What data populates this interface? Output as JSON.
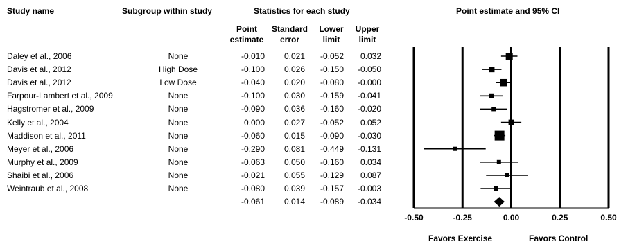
{
  "headers": {
    "study_name": "Study name",
    "subgroup": "Subgroup within study",
    "statistics": "Statistics for each study",
    "plot": "Point estimate and 95% CI",
    "point_estimate": "Point\nestimate",
    "standard_error": "Standard\nerror",
    "lower_limit": "Lower\nlimit",
    "upper_limit": "Upper\nlimit"
  },
  "favors": {
    "left": "Favors Exercise",
    "right": "Favors Control"
  },
  "chart_data": {
    "type": "forest",
    "xlim": [
      -0.5,
      0.5
    ],
    "ticks": [
      -0.5,
      -0.25,
      0.0,
      0.25,
      0.5
    ],
    "tick_labels": [
      "-0.50",
      "-0.25",
      "0.00",
      "0.25",
      "0.50"
    ],
    "studies": [
      {
        "name": "Daley et al., 2006",
        "subgroup": "None",
        "estimate": "-0.010",
        "se": "0.021",
        "lower": "-0.052",
        "upper": "0.032"
      },
      {
        "name": "Davis et al., 2012",
        "subgroup": "High Dose",
        "estimate": "-0.100",
        "se": "0.026",
        "lower": "-0.150",
        "upper": "-0.050"
      },
      {
        "name": "Davis et al., 2012",
        "subgroup": "Low Dose",
        "estimate": "-0.040",
        "se": "0.020",
        "lower": "-0.080",
        "upper": "-0.000"
      },
      {
        "name": "Farpour-Lambert et al., 2009",
        "subgroup": "None",
        "estimate": "-0.100",
        "se": "0.030",
        "lower": "-0.159",
        "upper": "-0.041"
      },
      {
        "name": "Hagstromer et al., 2009",
        "subgroup": "None",
        "estimate": "-0.090",
        "se": "0.036",
        "lower": "-0.160",
        "upper": "-0.020"
      },
      {
        "name": "Kelly et al., 2004",
        "subgroup": "None",
        "estimate": "0.000",
        "se": "0.027",
        "lower": "-0.052",
        "upper": "0.052"
      },
      {
        "name": "Maddison et al., 2011",
        "subgroup": "None",
        "estimate": "-0.060",
        "se": "0.015",
        "lower": "-0.090",
        "upper": "-0.030"
      },
      {
        "name": "Meyer et al., 2006",
        "subgroup": "None",
        "estimate": "-0.290",
        "se": "0.081",
        "lower": "-0.449",
        "upper": "-0.131"
      },
      {
        "name": "Murphy et al., 2009",
        "subgroup": "None",
        "estimate": "-0.063",
        "se": "0.050",
        "lower": "-0.160",
        "upper": "0.034"
      },
      {
        "name": "Shaibi et al., 2006",
        "subgroup": "None",
        "estimate": "-0.021",
        "se": "0.055",
        "lower": "-0.129",
        "upper": "0.087"
      },
      {
        "name": "Weintraub et al., 2008",
        "subgroup": "None",
        "estimate": "-0.080",
        "se": "0.039",
        "lower": "-0.157",
        "upper": "-0.003"
      }
    ],
    "summary": {
      "estimate": "-0.061",
      "se": "0.014",
      "lower": "-0.089",
      "upper": "-0.034"
    }
  }
}
